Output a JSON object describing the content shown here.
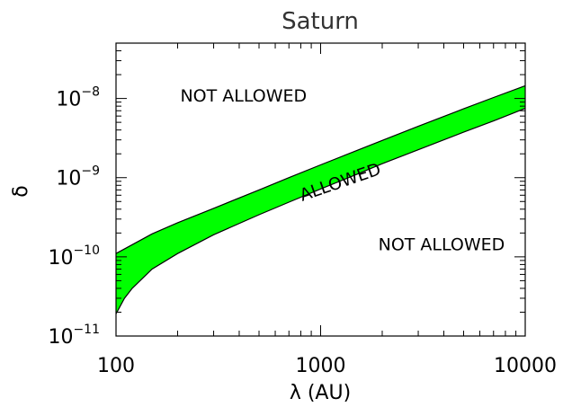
{
  "chart_data": {
    "type": "area",
    "title": "Saturn",
    "xlabel": "λ (AU)",
    "ylabel": "δ",
    "xscale": "log",
    "yscale": "log",
    "xlim": [
      100,
      10000
    ],
    "ylim": [
      1e-11,
      5e-08
    ],
    "x_ticks": [
      {
        "value": 100,
        "label": "100"
      },
      {
        "value": 1000,
        "label": "1000"
      },
      {
        "value": 10000,
        "label": "10000"
      }
    ],
    "y_ticks": [
      {
        "value": 1e-11,
        "base": "10",
        "exponent": "−11"
      },
      {
        "value": 1e-10,
        "base": "10",
        "exponent": "−10"
      },
      {
        "value": 1e-09,
        "base": "10",
        "exponent": "−9"
      },
      {
        "value": 1e-08,
        "base": "10",
        "exponent": "−8"
      }
    ],
    "fill_color": "#00ff00",
    "series": [
      {
        "role": "upper",
        "x": [
          100,
          150,
          200,
          300,
          500,
          700,
          1000,
          1500,
          2000,
          3000,
          5000,
          7000,
          10000
        ],
        "y": [
          1.1e-10,
          1.95e-10,
          2.7e-10,
          4.1e-10,
          7e-10,
          1e-09,
          1.45e-09,
          2.2e-09,
          2.95e-09,
          4.45e-09,
          7.4e-09,
          1.03e-08,
          1.45e-08
        ]
      },
      {
        "role": "lower",
        "x": [
          100,
          110,
          120,
          150,
          200,
          300,
          500,
          700,
          1000,
          1500,
          2000,
          3000,
          5000,
          7000,
          10000
        ],
        "y": [
          1.9e-11,
          3e-11,
          4e-11,
          7e-11,
          1.1e-10,
          1.9e-10,
          3.4e-10,
          4.9e-10,
          7.2e-10,
          1.1e-09,
          1.5e-09,
          2.25e-09,
          3.75e-09,
          5.2e-09,
          7.5e-09
        ]
      }
    ],
    "annotations": [
      {
        "text": "NOT ALLOWED",
        "x": 420,
        "y": 1.05e-08,
        "rotation": 0
      },
      {
        "text": "ALLOWED",
        "x": 1250,
        "y": 8.6e-10,
        "rotation": -19
      },
      {
        "text": "NOT ALLOWED",
        "x": 3900,
        "y": 1.4e-10,
        "rotation": 0
      }
    ]
  }
}
